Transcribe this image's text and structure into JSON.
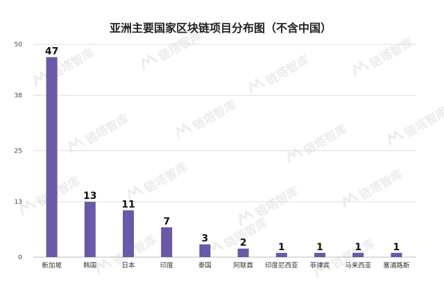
{
  "chart_data": {
    "type": "bar",
    "title": "亚洲主要国家区块链项目分布图（不含中国）",
    "xlabel": "",
    "ylabel": "",
    "categories": [
      "新加坡",
      "韩国",
      "日本",
      "印度",
      "泰国",
      "阿联酋",
      "印度尼西亚",
      "菲律宾",
      "马来西亚",
      "塞浦路斯"
    ],
    "values": [
      47,
      13,
      11,
      7,
      3,
      2,
      1,
      1,
      1,
      1
    ],
    "yticks": [
      "0",
      "13",
      "25",
      "38",
      "50"
    ],
    "ylim": [
      0,
      50
    ],
    "grid": true,
    "legend": "none",
    "bar_color": "#6a58a8",
    "grid_color": "#dddddd",
    "watermark_text": "链塔智库"
  }
}
